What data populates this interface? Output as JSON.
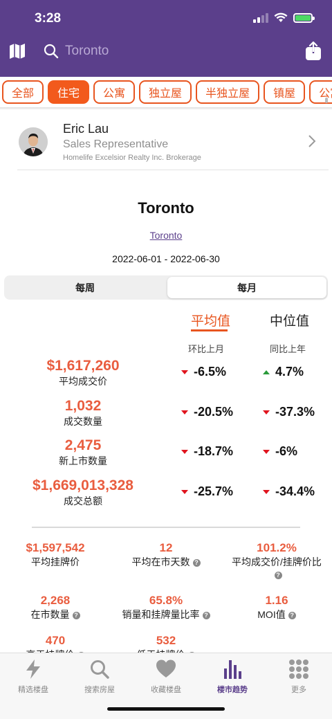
{
  "status": {
    "time": "3:28"
  },
  "search": {
    "placeholder": "Toronto"
  },
  "categories": [
    "全部",
    "住宅",
    "公寓",
    "独立屋",
    "半独立屋",
    "镇屋",
    "公寓"
  ],
  "agent": {
    "name": "Eric Lau",
    "title": "Sales Representative",
    "brokerage": "Homelife Excelsior Realty Inc. Brokerage"
  },
  "city": {
    "title": "Toronto",
    "link": "Toronto",
    "date_range": "2022-06-01 - 2022-06-30"
  },
  "period": {
    "weekly": "每周",
    "monthly": "每月"
  },
  "metric_tabs": {
    "average": "平均值",
    "median": "中位值"
  },
  "columns": {
    "mom": "环比上月",
    "yoy": "同比上年"
  },
  "stats": [
    {
      "value": "$1,617,260",
      "label": "平均成交价",
      "mom": "-6.5%",
      "mom_dir": "down",
      "yoy": "4.7%",
      "yoy_dir": "up"
    },
    {
      "value": "1,032",
      "label": "成交数量",
      "mom": "-20.5%",
      "mom_dir": "down",
      "yoy": "-37.3%",
      "yoy_dir": "down"
    },
    {
      "value": "2,475",
      "label": "新上市数量",
      "mom": "-18.7%",
      "mom_dir": "down",
      "yoy": "-6%",
      "yoy_dir": "down"
    },
    {
      "value": "$1,669,013,328",
      "label": "成交总额",
      "mom": "-25.7%",
      "mom_dir": "down",
      "yoy": "-34.4%",
      "yoy_dir": "down"
    }
  ],
  "grid": [
    {
      "value": "$1,597,542",
      "label": "平均挂牌价",
      "help": false
    },
    {
      "value": "12",
      "label": "平均在市天数",
      "help": true
    },
    {
      "value": "101.2%",
      "label": "平均成交价/挂牌价比",
      "help": true
    },
    {
      "value": "2,268",
      "label": "在市数量",
      "help": true
    },
    {
      "value": "65.8%",
      "label": "销量和挂牌量比率",
      "help": true
    },
    {
      "value": "1.16",
      "label": "MOI值",
      "help": true
    },
    {
      "value": "470",
      "label": "高于挂牌价",
      "help": true
    },
    {
      "value": "532",
      "label": "低于挂牌价",
      "help": true
    }
  ],
  "help_glyph": "?",
  "tabbar": [
    {
      "label": "精选楼盘",
      "icon": "lightning-icon"
    },
    {
      "label": "搜索房屋",
      "icon": "search-icon"
    },
    {
      "label": "收藏楼盘",
      "icon": "heart-icon"
    },
    {
      "label": "楼市趋势",
      "icon": "bar-chart-icon",
      "active": true
    },
    {
      "label": "更多",
      "icon": "grid-dots-icon"
    }
  ],
  "colors": {
    "header": "#5b3f8b",
    "accent": "#e8551f",
    "value": "#e95d3f",
    "down": "#e0141e",
    "up": "#2a9b3a"
  }
}
